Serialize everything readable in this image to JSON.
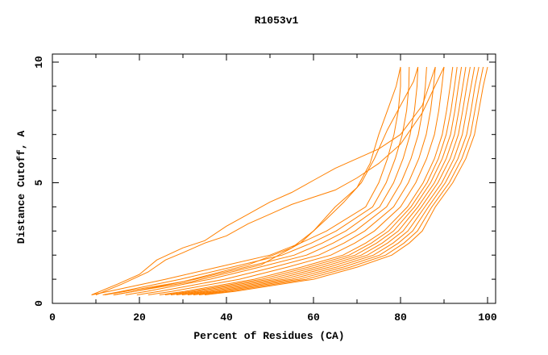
{
  "chart_data": {
    "type": "line",
    "title": "R1053v1",
    "xlabel": "Percent of Residues (CA)",
    "ylabel": "Distance Cutoff, A",
    "xlim": [
      0,
      100
    ],
    "ylim": [
      0,
      10
    ],
    "xticks": [
      "0",
      "20",
      "40",
      "60",
      "80",
      "100"
    ],
    "yticks": [
      "0",
      "5",
      "10"
    ],
    "grid": false,
    "legend": "none",
    "line_color": "#ff8000",
    "shared_y": [
      0.35,
      0.5,
      1,
      1.5,
      2,
      2.5,
      3,
      4,
      5,
      6,
      7,
      8,
      9,
      9.8
    ],
    "bundle_x": [
      [
        9,
        13,
        26,
        38,
        50,
        57,
        63,
        72,
        75,
        77,
        78.5,
        79.5,
        80,
        80
      ],
      [
        11.6,
        15.9,
        29.4,
        41.2,
        52.8,
        59.5,
        65.2,
        73.6,
        76.7,
        78.8,
        80.4,
        81.4,
        81.9,
        82
      ],
      [
        14.2,
        18.8,
        32.8,
        44.4,
        55.6,
        62,
        67.4,
        75.2,
        78.4,
        80.6,
        82.2,
        83.2,
        83.8,
        84
      ],
      [
        16.8,
        21.7,
        36.2,
        47.6,
        58.4,
        64.5,
        69.6,
        76.8,
        80.1,
        82.4,
        84.1,
        85.1,
        85.7,
        86
      ],
      [
        19.4,
        24.6,
        39.6,
        50.8,
        61.2,
        67,
        71.8,
        78.4,
        81.8,
        84.2,
        85.9,
        86.9,
        87.6,
        88
      ],
      [
        22,
        27.5,
        43,
        54,
        64,
        69.5,
        74,
        80,
        83.5,
        86,
        87.8,
        88.8,
        89.5,
        90
      ],
      [
        24.6,
        30.4,
        46.4,
        57.2,
        66.8,
        72,
        76.2,
        81.6,
        85.2,
        87.8,
        89.6,
        90.6,
        91.4,
        92
      ],
      [
        25.9,
        31.9,
        48.1,
        58.8,
        68.2,
        73.3,
        77.3,
        82.4,
        86.1,
        88.7,
        90.5,
        91.6,
        92.4,
        93
      ],
      [
        27.2,
        33.3,
        49.8,
        60.4,
        69.6,
        74.5,
        78.4,
        83.2,
        86.9,
        89.6,
        91.5,
        92.5,
        93.3,
        94
      ],
      [
        28.5,
        34.8,
        51.5,
        62,
        71,
        75.8,
        79.5,
        84,
        87.8,
        90.5,
        92.4,
        93.4,
        94.3,
        95
      ],
      [
        29.8,
        36.2,
        53.2,
        63.6,
        72.4,
        77,
        80.6,
        84.8,
        88.6,
        91.4,
        93.3,
        94.3,
        95.2,
        96
      ],
      [
        31.1,
        37.7,
        54.9,
        65.2,
        73.8,
        78.3,
        81.7,
        85.6,
        89.5,
        92.3,
        94.2,
        95.2,
        96.2,
        97
      ],
      [
        32.4,
        39.1,
        56.6,
        66.8,
        75.2,
        79.5,
        82.8,
        86.4,
        90.3,
        93.2,
        95.2,
        96.2,
        97.1,
        98
      ],
      [
        33.7,
        40.6,
        58.3,
        68.4,
        76.6,
        80.8,
        83.9,
        87.2,
        91.2,
        94.1,
        96.1,
        97.1,
        98.1,
        99
      ],
      [
        35,
        42,
        60,
        70,
        78,
        82,
        85,
        88,
        92,
        95,
        97,
        98,
        99,
        100
      ]
    ],
    "series": [
      {
        "x": [
          9,
          15,
          20,
          24,
          30,
          35,
          40,
          45,
          50,
          55,
          60,
          65,
          70,
          75,
          80,
          85,
          88
        ],
        "y": [
          0.35,
          0.8,
          1.2,
          1.8,
          2.3,
          2.6,
          3.2,
          3.7,
          4.2,
          4.6,
          5.1,
          5.6,
          6,
          6.4,
          7,
          8.2,
          9.8
        ]
      },
      {
        "x": [
          10,
          16,
          22,
          26,
          30,
          35,
          40,
          45,
          50,
          55,
          60,
          65,
          70,
          75,
          80,
          85,
          90
        ],
        "y": [
          0.35,
          0.8,
          1.3,
          1.8,
          2.1,
          2.5,
          2.8,
          3.3,
          3.7,
          4.1,
          4.4,
          4.7,
          5.2,
          5.8,
          6.6,
          7.9,
          9.8
        ]
      },
      {
        "x": [
          12,
          30,
          45,
          55,
          60,
          65,
          70,
          73,
          75,
          77,
          79,
          80
        ],
        "y": [
          0.35,
          0.9,
          1.6,
          2.3,
          3,
          4,
          4.8,
          5.8,
          7,
          8,
          9,
          9.8
        ]
      },
      {
        "x": [
          14,
          32,
          48,
          57,
          63,
          67,
          71,
          74,
          77,
          80,
          83,
          84
        ],
        "y": [
          0.35,
          0.9,
          1.6,
          2.5,
          3.5,
          4.2,
          5,
          6,
          7.2,
          8.2,
          9.2,
          9.8
        ]
      }
    ]
  }
}
